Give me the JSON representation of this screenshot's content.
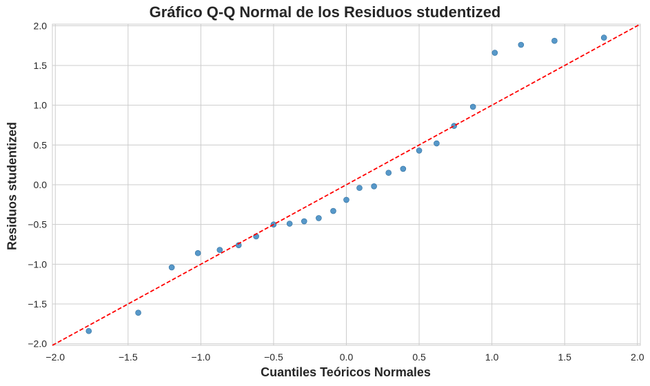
{
  "chart_data": {
    "type": "scatter",
    "title": "Gráfico Q-Q Normal de los Residuos studentized",
    "xlabel": "Cuantiles Teóricos Normales",
    "ylabel": "Residuos studentized",
    "xlim": [
      -2.02,
      2.02
    ],
    "ylim": [
      -2.02,
      2.02
    ],
    "xticks": [
      -2.0,
      -1.5,
      -1.0,
      -0.5,
      0.0,
      0.5,
      1.0,
      1.5,
      2.0
    ],
    "xtick_labels": [
      "−2.0",
      "−1.5",
      "−1.0",
      "−0.5",
      "0.0",
      "0.5",
      "1.0",
      "1.5",
      "2.0"
    ],
    "yticks": [
      -2.0,
      -1.5,
      -1.0,
      -0.5,
      0.0,
      0.5,
      1.0,
      1.5,
      2.0
    ],
    "ytick_labels": [
      "−2.0",
      "−1.5",
      "−1.0",
      "−0.5",
      "0.0",
      "0.5",
      "1.0",
      "1.5",
      "2.0"
    ],
    "grid": true,
    "points": [
      [
        -1.77,
        -1.84
      ],
      [
        -1.43,
        -1.61
      ],
      [
        -1.2,
        -1.04
      ],
      [
        -1.02,
        -0.86
      ],
      [
        -0.87,
        -0.82
      ],
      [
        -0.74,
        -0.76
      ],
      [
        -0.62,
        -0.65
      ],
      [
        -0.5,
        -0.5
      ],
      [
        -0.39,
        -0.49
      ],
      [
        -0.29,
        -0.46
      ],
      [
        -0.19,
        -0.42
      ],
      [
        -0.09,
        -0.33
      ],
      [
        0.0,
        -0.19
      ],
      [
        0.09,
        -0.04
      ],
      [
        0.19,
        -0.02
      ],
      [
        0.29,
        0.15
      ],
      [
        0.39,
        0.2
      ],
      [
        0.5,
        0.43
      ],
      [
        0.62,
        0.52
      ],
      [
        0.74,
        0.74
      ],
      [
        0.87,
        0.98
      ],
      [
        1.02,
        1.66
      ],
      [
        1.2,
        1.76
      ],
      [
        1.43,
        1.81
      ],
      [
        1.77,
        1.85
      ]
    ],
    "reference_line": {
      "from": [
        -2.02,
        -2.02
      ],
      "to": [
        2.02,
        2.02
      ],
      "style": "dashed"
    },
    "colors": {
      "points": "#3a86c0",
      "reference_line": "#ff0000",
      "grid": "#cccccc",
      "spine": "#cccccc"
    }
  }
}
